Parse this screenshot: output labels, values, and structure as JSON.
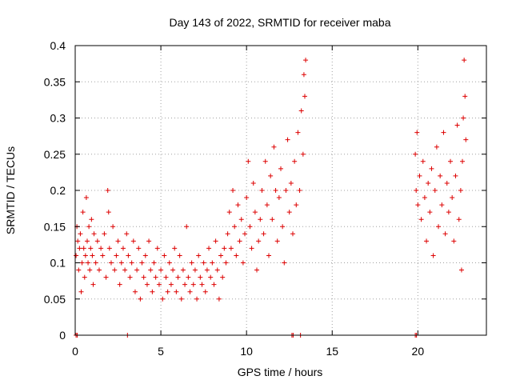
{
  "chart_data": {
    "type": "scatter",
    "title": "Day 143 of 2022, SRMTID for receiver maba",
    "xlabel": "GPS time / hours",
    "ylabel": "SRMTID / TECUs",
    "xlim": [
      0,
      24
    ],
    "ylim": [
      0,
      0.4
    ],
    "xticks": [
      0,
      5,
      10,
      15,
      20
    ],
    "xtick_labels": [
      "0",
      "5",
      "10",
      "15",
      "20"
    ],
    "yticks": [
      0,
      0.05,
      0.1,
      0.15,
      0.2,
      0.25,
      0.3,
      0.35,
      0.4
    ],
    "ytick_labels": [
      "0",
      "0.05",
      "0.1",
      "0.15",
      "0.2",
      "0.25",
      "0.3",
      "0.35",
      "0.4"
    ],
    "grid": true,
    "marker": "+",
    "color": "#dd0000",
    "series": [
      {
        "name": "SRMTID",
        "description": "Dense cloud of points; representative sample read from the plot",
        "points": [
          [
            0.05,
            0.11
          ],
          [
            0.1,
            0.15
          ],
          [
            0.15,
            0.13
          ],
          [
            0.2,
            0.09
          ],
          [
            0.25,
            0.12
          ],
          [
            0.3,
            0.14
          ],
          [
            0.35,
            0.06
          ],
          [
            0.4,
            0.1
          ],
          [
            0.45,
            0.17
          ],
          [
            0.5,
            0.12
          ],
          [
            0.55,
            0.08
          ],
          [
            0.6,
            0.11
          ],
          [
            0.65,
            0.19
          ],
          [
            0.7,
            0.13
          ],
          [
            0.75,
            0.1
          ],
          [
            0.8,
            0.15
          ],
          [
            0.85,
            0.09
          ],
          [
            0.9,
            0.12
          ],
          [
            0.95,
            0.16
          ],
          [
            1.0,
            0.11
          ],
          [
            1.05,
            0.07
          ],
          [
            1.1,
            0.14
          ],
          [
            1.2,
            0.1
          ],
          [
            1.3,
            0.13
          ],
          [
            1.4,
            0.09
          ],
          [
            1.5,
            0.12
          ],
          [
            1.6,
            0.11
          ],
          [
            1.7,
            0.14
          ],
          [
            1.8,
            0.08
          ],
          [
            1.9,
            0.2
          ],
          [
            1.95,
            0.17
          ],
          [
            2.0,
            0.12
          ],
          [
            2.1,
            0.1
          ],
          [
            2.2,
            0.15
          ],
          [
            2.3,
            0.09
          ],
          [
            2.4,
            0.11
          ],
          [
            2.5,
            0.13
          ],
          [
            2.6,
            0.07
          ],
          [
            2.7,
            0.1
          ],
          [
            2.8,
            0.12
          ],
          [
            2.9,
            0.09
          ],
          [
            3.0,
            0.14
          ],
          [
            3.1,
            0.11
          ],
          [
            3.2,
            0.08
          ],
          [
            3.3,
            0.1
          ],
          [
            3.4,
            0.13
          ],
          [
            3.5,
            0.06
          ],
          [
            3.6,
            0.09
          ],
          [
            3.7,
            0.12
          ],
          [
            3.8,
            0.05
          ],
          [
            3.9,
            0.1
          ],
          [
            4.0,
            0.08
          ],
          [
            4.1,
            0.11
          ],
          [
            4.2,
            0.07
          ],
          [
            4.3,
            0.13
          ],
          [
            4.4,
            0.09
          ],
          [
            4.5,
            0.06
          ],
          [
            4.6,
            0.1
          ],
          [
            4.7,
            0.08
          ],
          [
            4.8,
            0.12
          ],
          [
            4.9,
            0.07
          ],
          [
            5.0,
            0.09
          ],
          [
            5.1,
            0.05
          ],
          [
            5.2,
            0.11
          ],
          [
            5.3,
            0.08
          ],
          [
            5.4,
            0.06
          ],
          [
            5.5,
            0.1
          ],
          [
            5.6,
            0.07
          ],
          [
            5.7,
            0.09
          ],
          [
            5.8,
            0.12
          ],
          [
            5.9,
            0.06
          ],
          [
            6.0,
            0.08
          ],
          [
            6.1,
            0.11
          ],
          [
            6.2,
            0.05
          ],
          [
            6.3,
            0.09
          ],
          [
            6.4,
            0.07
          ],
          [
            6.5,
            0.15
          ],
          [
            6.6,
            0.08
          ],
          [
            6.7,
            0.06
          ],
          [
            6.8,
            0.1
          ],
          [
            6.9,
            0.07
          ],
          [
            7.0,
            0.09
          ],
          [
            7.1,
            0.05
          ],
          [
            7.2,
            0.11
          ],
          [
            7.3,
            0.08
          ],
          [
            7.4,
            0.07
          ],
          [
            7.5,
            0.1
          ],
          [
            7.6,
            0.06
          ],
          [
            7.7,
            0.09
          ],
          [
            7.8,
            0.12
          ],
          [
            7.9,
            0.08
          ],
          [
            8.0,
            0.1
          ],
          [
            8.1,
            0.07
          ],
          [
            8.2,
            0.13
          ],
          [
            8.3,
            0.09
          ],
          [
            8.4,
            0.05
          ],
          [
            8.5,
            0.11
          ],
          [
            8.6,
            0.08
          ],
          [
            8.7,
            0.12
          ],
          [
            8.8,
            0.1
          ],
          [
            8.9,
            0.14
          ],
          [
            9.0,
            0.17
          ],
          [
            9.1,
            0.12
          ],
          [
            9.2,
            0.2
          ],
          [
            9.3,
            0.15
          ],
          [
            9.4,
            0.11
          ],
          [
            9.5,
            0.18
          ],
          [
            9.6,
            0.13
          ],
          [
            9.7,
            0.16
          ],
          [
            9.8,
            0.1
          ],
          [
            9.9,
            0.14
          ],
          [
            10.0,
            0.19
          ],
          [
            10.1,
            0.24
          ],
          [
            10.2,
            0.15
          ],
          [
            10.3,
            0.12
          ],
          [
            10.4,
            0.21
          ],
          [
            10.5,
            0.17
          ],
          [
            10.6,
            0.09
          ],
          [
            10.7,
            0.13
          ],
          [
            10.8,
            0.16
          ],
          [
            10.9,
            0.2
          ],
          [
            11.0,
            0.14
          ],
          [
            11.1,
            0.24
          ],
          [
            11.2,
            0.18
          ],
          [
            11.3,
            0.11
          ],
          [
            11.4,
            0.22
          ],
          [
            11.5,
            0.16
          ],
          [
            11.6,
            0.26
          ],
          [
            11.7,
            0.2
          ],
          [
            11.8,
            0.13
          ],
          [
            11.9,
            0.19
          ],
          [
            12.0,
            0.23
          ],
          [
            12.1,
            0.15
          ],
          [
            12.2,
            0.1
          ],
          [
            12.3,
            0.2
          ],
          [
            12.4,
            0.27
          ],
          [
            12.5,
            0.17
          ],
          [
            12.6,
            0.21
          ],
          [
            12.7,
            0.14
          ],
          [
            12.8,
            0.24
          ],
          [
            12.9,
            0.18
          ],
          [
            13.0,
            0.28
          ],
          [
            13.1,
            0.2
          ],
          [
            13.2,
            0.31
          ],
          [
            13.3,
            0.25
          ],
          [
            13.35,
            0.36
          ],
          [
            13.4,
            0.33
          ],
          [
            13.45,
            0.38
          ],
          [
            19.85,
            0.25
          ],
          [
            19.9,
            0.2
          ],
          [
            19.95,
            0.28
          ],
          [
            20.0,
            0.18
          ],
          [
            20.1,
            0.22
          ],
          [
            20.2,
            0.16
          ],
          [
            20.3,
            0.24
          ],
          [
            20.4,
            0.19
          ],
          [
            20.5,
            0.13
          ],
          [
            20.6,
            0.21
          ],
          [
            20.7,
            0.17
          ],
          [
            20.8,
            0.23
          ],
          [
            20.9,
            0.11
          ],
          [
            21.0,
            0.2
          ],
          [
            21.1,
            0.26
          ],
          [
            21.2,
            0.15
          ],
          [
            21.3,
            0.22
          ],
          [
            21.4,
            0.18
          ],
          [
            21.5,
            0.28
          ],
          [
            21.6,
            0.14
          ],
          [
            21.7,
            0.21
          ],
          [
            21.8,
            0.17
          ],
          [
            21.9,
            0.24
          ],
          [
            22.0,
            0.19
          ],
          [
            22.1,
            0.13
          ],
          [
            22.2,
            0.22
          ],
          [
            22.3,
            0.29
          ],
          [
            22.4,
            0.16
          ],
          [
            22.5,
            0.2
          ],
          [
            22.55,
            0.09
          ],
          [
            22.6,
            0.24
          ],
          [
            22.65,
            0.3
          ],
          [
            22.7,
            0.38
          ],
          [
            22.75,
            0.33
          ],
          [
            22.8,
            0.27
          ]
        ]
      }
    ],
    "baseline_marks_x": [
      0.05,
      0.12,
      3.05,
      12.65,
      12.72,
      13.15,
      19.85,
      19.92
    ]
  }
}
